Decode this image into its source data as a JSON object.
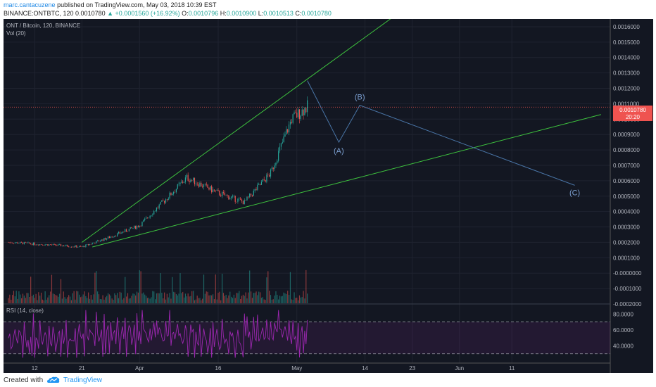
{
  "header": {
    "author": "marc.cantacuzene",
    "published": "published on TradingView.com, May 03, 2018 10:39 EST",
    "symbol": "BINANCE:ONTBTC, 120",
    "last": "0.0010780",
    "change": "+0.0001560 (+16.92%)",
    "ohlc": {
      "o_label": "O:",
      "o": "0.0010796",
      "h_label": "H:",
      "h": "0.0010900",
      "l_label": "L:",
      "l": "0.0010513",
      "c_label": "C:",
      "c": "0.0010780"
    }
  },
  "legend": {
    "title": "ONT / Bitcoin, 120, BINANCE",
    "vol": "Vol (20)",
    "rsi": "RSI (14, close)"
  },
  "price_axis": [
    "0.0016000",
    "0.0015000",
    "0.0014000",
    "0.0013000",
    "0.0012000",
    "0.0011000",
    "0.0010000",
    "0.0009000",
    "0.0008000",
    "0.0007000",
    "0.0006000",
    "0.0005000",
    "0.0004000",
    "0.0003000",
    "0.0002000",
    "0.0001000",
    "-0.0000000",
    "-0.0001000",
    "-0.0002000"
  ],
  "price_badge": {
    "value": "0.0010780",
    "countdown": "20:20"
  },
  "rsi_axis": [
    "80.0000",
    "60.0000",
    "40.0000"
  ],
  "x_axis": [
    "12",
    "21",
    "Apr",
    "16",
    "May",
    "14",
    "23",
    "Jun",
    "11"
  ],
  "wave_labels": [
    "(A)",
    "(B)",
    "(C)"
  ],
  "colors": {
    "background": "#131722",
    "trendline": "#3ec43e",
    "projection": "#4a76a8",
    "rsi": "#9c27b0",
    "ma": "#ff9800",
    "up": "#26a69a",
    "down": "#ef5350"
  },
  "chart_data": {
    "type": "line",
    "title": "ONT / Bitcoin, 120, BINANCE",
    "x": [
      "Mar 07",
      "Mar 12",
      "Mar 17",
      "Mar 21",
      "Mar 26",
      "Apr 01",
      "Apr 06",
      "Apr 10",
      "Apr 16",
      "Apr 21",
      "Apr 26",
      "Apr 30",
      "May 03"
    ],
    "series": [
      {
        "values": [
          0.0002,
          0.00019,
          0.00018,
          0.00017,
          0.00023,
          0.00031,
          0.00048,
          0.00062,
          0.00052,
          0.00046,
          0.00065,
          0.001,
          0.00108
        ]
      }
    ],
    "projection_abc": {
      "x": [
        "May 03",
        "May 09",
        "May 13",
        "Jun 23"
      ],
      "values": [
        0.00125,
        0.00085,
        0.00109,
        0.00057
      ]
    },
    "trendline_upper": {
      "x": [
        "Mar 21",
        "May 03"
      ],
      "values": [
        0.0002,
        0.00126
      ]
    },
    "trendline_lower": {
      "x": [
        "Mar 23",
        "Jun 28"
      ],
      "values": [
        0.00017,
        0.00103
      ]
    },
    "ylim": [
      -0.0002,
      0.00165
    ],
    "rsi_levels": [
      30,
      70
    ],
    "grid": true
  }
}
